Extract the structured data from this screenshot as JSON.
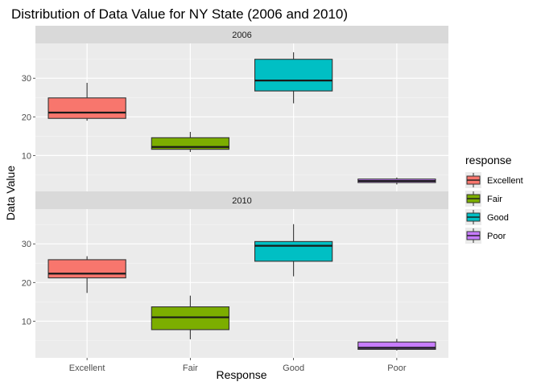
{
  "chart_data": {
    "type": "boxplot",
    "title": "Distribution of Data Value for NY State (2006 and 2010)",
    "xlabel": "Response",
    "ylabel": "Data Value",
    "categories": [
      "Excellent",
      "Fair",
      "Good",
      "Poor"
    ],
    "ylim": [
      0.5,
      39
    ],
    "yticks": [
      10,
      20,
      30
    ],
    "legend": {
      "title": "response",
      "position": "right"
    },
    "colors": {
      "Excellent": "#F8766D",
      "Fair": "#7CAE00",
      "Good": "#00BFC4",
      "Poor": "#C77CFF"
    },
    "panels": [
      {
        "label": "2006",
        "boxes": [
          {
            "category": "Excellent",
            "min": 19.0,
            "q1": 19.6,
            "median": 21.1,
            "q3": 24.9,
            "max": 28.8
          },
          {
            "category": "Fair",
            "min": 10.9,
            "q1": 11.6,
            "median": 12.2,
            "q3": 14.6,
            "max": 16.1
          },
          {
            "category": "Good",
            "min": 23.5,
            "q1": 26.7,
            "median": 29.4,
            "q3": 34.9,
            "max": 36.7
          },
          {
            "category": "Poor",
            "min": 2.5,
            "q1": 3.0,
            "median": 3.4,
            "q3": 3.9,
            "max": 4.3
          }
        ]
      },
      {
        "label": "2010",
        "boxes": [
          {
            "category": "Excellent",
            "min": 17.3,
            "q1": 21.2,
            "median": 22.3,
            "q3": 25.9,
            "max": 26.8
          },
          {
            "category": "Fair",
            "min": 5.3,
            "q1": 7.8,
            "median": 11.0,
            "q3": 13.7,
            "max": 16.6
          },
          {
            "category": "Good",
            "min": 21.6,
            "q1": 25.5,
            "median": 29.5,
            "q3": 30.6,
            "max": 35.1
          },
          {
            "category": "Poor",
            "min": 2.4,
            "q1": 2.7,
            "median": 3.1,
            "q3": 4.6,
            "max": 5.4
          }
        ]
      }
    ]
  }
}
